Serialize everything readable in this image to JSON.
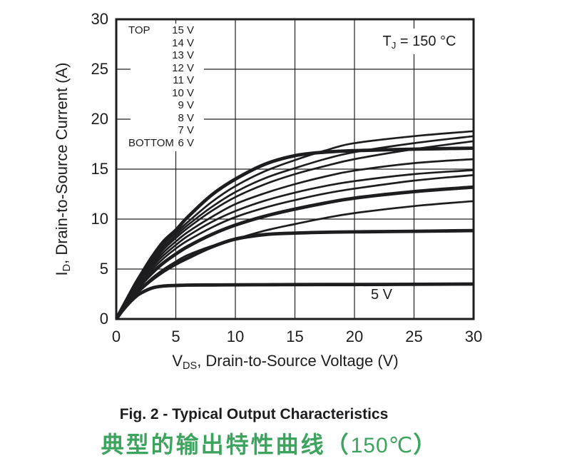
{
  "colors": {
    "ink": "#1d1d1f",
    "grid": "#222222",
    "background": "#ffffff",
    "caption_green": "#3ca45e"
  },
  "captions": {
    "en": "Fig. 2 - Typical Output Characteristics",
    "zh_main": "典型的输出特性曲线（",
    "zh_temp": "150℃",
    "zh_close": "）"
  },
  "chart_data": {
    "type": "line",
    "condition": {
      "prefix": "T",
      "sub": "J",
      "rest": " = 150 °C"
    },
    "x_axis": {
      "prefix": "V",
      "sub": "DS",
      "rest": ", Drain-to-Source Voltage (V)",
      "lim": [
        0,
        30
      ],
      "ticks": [
        0,
        5,
        10,
        15,
        20,
        25,
        30
      ]
    },
    "y_axis": {
      "prefix": "I",
      "sub": "D",
      "rest": ", Drain-to-Source Current (A)",
      "lim": [
        0,
        30
      ],
      "ticks": [
        0,
        5,
        10,
        15,
        20,
        25,
        30
      ]
    },
    "grid": "on",
    "legend": {
      "top": "TOP",
      "bottom": "BOTTOM",
      "rows": [
        "15 V",
        "14 V",
        "13 V",
        "12 V",
        "11 V",
        "10 V",
        "9 V",
        "8 V",
        "7 V",
        "6 V"
      ]
    },
    "inline_label": "5 V",
    "x": [
      0,
      0.5,
      1,
      1.5,
      2,
      3,
      4,
      5,
      6,
      8,
      10,
      12.5,
      15,
      17.5,
      20,
      25,
      30
    ],
    "series": [
      {
        "name": "15 V",
        "thick": true,
        "values": [
          0,
          1.1,
          2.2,
          3.3,
          4.3,
          6.2,
          7.8,
          8.9,
          10.2,
          12.4,
          14.0,
          15.5,
          16.35,
          16.7,
          16.85,
          17.0,
          17.1
        ]
      },
      {
        "name": "14 V",
        "thick": false,
        "values": [
          0,
          1.07,
          2.14,
          3.2,
          4.2,
          6.0,
          7.5,
          8.6,
          9.7,
          11.7,
          13.3,
          14.8,
          15.9,
          16.85,
          17.6,
          18.3,
          18.8
        ]
      },
      {
        "name": "13 V",
        "thick": false,
        "values": [
          0,
          1.05,
          2.1,
          3.1,
          4.05,
          5.8,
          7.25,
          8.35,
          9.4,
          11.2,
          12.7,
          14.1,
          15.1,
          16.0,
          16.7,
          17.6,
          18.3
        ]
      },
      {
        "name": "12 V",
        "thick": false,
        "values": [
          0,
          1.02,
          2.05,
          3.0,
          3.95,
          5.6,
          7.0,
          8.1,
          9.1,
          10.8,
          12.2,
          13.5,
          14.5,
          15.3,
          16.0,
          17.0,
          17.8
        ]
      },
      {
        "name": "11 V",
        "thick": false,
        "values": [
          0,
          1.0,
          2.0,
          2.9,
          3.8,
          5.4,
          6.7,
          7.75,
          8.7,
          10.2,
          11.5,
          12.6,
          13.5,
          14.25,
          14.85,
          15.6,
          16.0
        ]
      },
      {
        "name": "10 V",
        "thick": false,
        "values": [
          0,
          0.98,
          1.95,
          2.85,
          3.7,
          5.2,
          6.4,
          7.4,
          8.3,
          9.7,
          10.8,
          11.85,
          12.65,
          13.3,
          13.8,
          14.5,
          14.9
        ]
      },
      {
        "name": "9 V",
        "thick": false,
        "values": [
          0,
          0.96,
          1.9,
          2.75,
          3.55,
          4.95,
          6.1,
          7.05,
          7.85,
          9.15,
          10.2,
          11.15,
          11.9,
          12.55,
          13.05,
          13.85,
          14.4
        ]
      },
      {
        "name": "8 V",
        "thick": true,
        "values": [
          0,
          0.93,
          1.82,
          2.6,
          3.35,
          4.6,
          5.65,
          6.5,
          7.25,
          8.45,
          9.4,
          10.3,
          11.0,
          11.6,
          12.1,
          12.75,
          13.2
        ]
      },
      {
        "name": "7 V",
        "thick": false,
        "values": [
          0,
          0.9,
          1.7,
          2.4,
          3.0,
          4.1,
          5.0,
          5.75,
          6.4,
          7.3,
          8.0,
          8.85,
          9.5,
          10.1,
          10.6,
          11.3,
          11.8
        ]
      },
      {
        "name": "6 V",
        "thick": true,
        "values": [
          0,
          0.87,
          1.65,
          2.35,
          2.95,
          3.95,
          4.8,
          5.5,
          6.1,
          7.2,
          8.0,
          8.45,
          8.6,
          8.68,
          8.72,
          8.78,
          8.85
        ]
      },
      {
        "name": "5 V",
        "thick": true,
        "values": [
          0,
          0.8,
          1.5,
          2.1,
          2.55,
          3.1,
          3.3,
          3.36,
          3.39,
          3.41,
          3.42,
          3.43,
          3.44,
          3.45,
          3.45,
          3.47,
          3.5
        ]
      }
    ]
  }
}
